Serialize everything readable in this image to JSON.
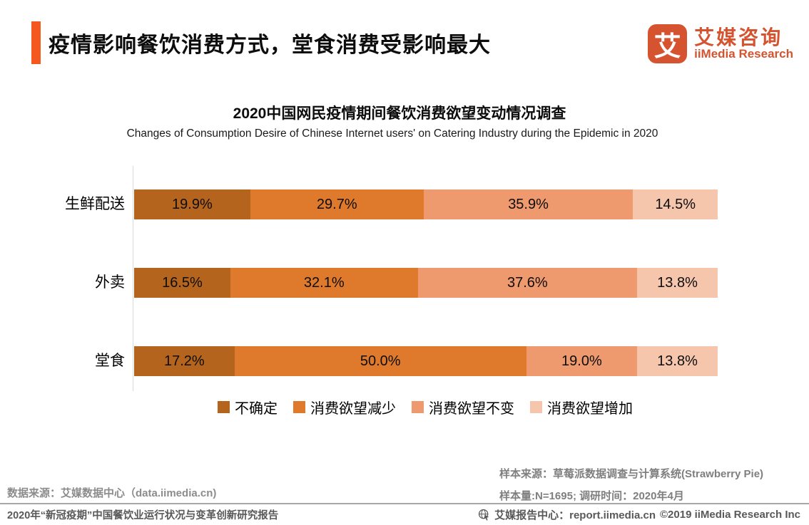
{
  "header": {
    "title": "疫情影响餐饮消费方式，堂食消费受影响最大",
    "accent_color": "#F4581F",
    "logo": {
      "icon_char": "艾",
      "brand_color": "#D5532F",
      "name_cn": "艾媒咨询",
      "name_en": "iiMedia Research"
    }
  },
  "chart": {
    "title": "2020中国网民疫情期间餐饮消费欲望变动情况调查",
    "subtitle": "Changes of Consumption Desire of Chinese Internet users' on Catering Industry during the Epidemic in 2020"
  },
  "chart_data": {
    "type": "bar",
    "orientation": "horizontal-stacked",
    "categories": [
      "生鲜配送",
      "外卖",
      "堂食"
    ],
    "series": [
      {
        "name": "不确定",
        "color": "#B5641E",
        "values": [
          19.9,
          16.5,
          17.2
        ]
      },
      {
        "name": "消费欲望减少",
        "color": "#DF7A2D",
        "values": [
          29.7,
          32.1,
          50.0
        ]
      },
      {
        "name": "消费欲望不变",
        "color": "#EE9A6E",
        "values": [
          35.9,
          37.6,
          19.0
        ]
      },
      {
        "name": "消费欲望增加",
        "color": "#F5C6AC",
        "values": [
          14.5,
          13.8,
          13.8
        ]
      }
    ],
    "value_suffix": "%",
    "xlim": [
      0,
      100
    ],
    "grid": false,
    "legend_position": "bottom"
  },
  "notes": {
    "sample_source": "样本来源：草莓派数据调查与计算系统(Strawberry Pie)",
    "sample_size": "样本量:N=1695; 调研时间：2020年4月",
    "data_source": "数据来源：艾媒数据中心（data.iimedia.cn)"
  },
  "footer": {
    "report_title": "2020年“新冠疫期”中国餐饮业运行状况与变革创新研究报告",
    "report_center": "艾媒报告中心：report.iimedia.cn",
    "copyright": "©2019  iiMedia Research  Inc"
  }
}
